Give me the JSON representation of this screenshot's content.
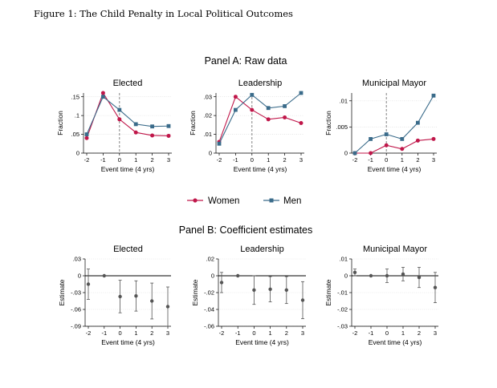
{
  "figure": {
    "caption": "Figure 1: The Child Penalty in Local Political Outcomes",
    "panel_a_title": "Panel A: Raw data",
    "panel_b_title": "Panel B: Coefficient estimates",
    "legend": [
      {
        "label": "Women",
        "color": "#c0174a",
        "marker": "circle"
      },
      {
        "label": "Men",
        "color": "#3a6b8a",
        "marker": "square"
      }
    ]
  },
  "chart_data": [
    {
      "panel": "A",
      "type": "line",
      "title": "Elected",
      "xlabel": "Event time (4 yrs)",
      "ylabel": "Fraction",
      "x": [
        -2,
        -1,
        0,
        1,
        2,
        3
      ],
      "xticks": [
        -2,
        -1,
        0,
        1,
        2,
        3
      ],
      "xlim": [
        -2,
        3
      ],
      "ylim": [
        0,
        0.16
      ],
      "yticks": [
        0,
        0.05,
        0.1,
        0.15
      ],
      "ytick_labels": [
        "0",
        ".05",
        ".1",
        ".15"
      ],
      "vline": 0,
      "grid": true,
      "series": [
        {
          "name": "Women",
          "color": "#c0174a",
          "marker": "circle",
          "values": [
            0.04,
            0.16,
            0.09,
            0.055,
            0.047,
            0.046
          ]
        },
        {
          "name": "Men",
          "color": "#3a6b8a",
          "marker": "square",
          "values": [
            0.05,
            0.15,
            0.115,
            0.077,
            0.071,
            0.072
          ]
        }
      ]
    },
    {
      "panel": "A",
      "type": "line",
      "title": "Leadership",
      "xlabel": "Event time (4 yrs)",
      "ylabel": "Fraction",
      "x": [
        -2,
        -1,
        0,
        1,
        2,
        3
      ],
      "xticks": [
        -2,
        -1,
        0,
        1,
        2,
        3
      ],
      "xlim": [
        -2,
        3
      ],
      "ylim": [
        0,
        0.032
      ],
      "yticks": [
        0,
        0.01,
        0.02,
        0.03
      ],
      "ytick_labels": [
        "0",
        ".01",
        ".02",
        ".03"
      ],
      "vline": 0,
      "grid": true,
      "series": [
        {
          "name": "Women",
          "color": "#c0174a",
          "marker": "circle",
          "values": [
            0.006,
            0.03,
            0.023,
            0.018,
            0.019,
            0.016
          ]
        },
        {
          "name": "Men",
          "color": "#3a6b8a",
          "marker": "square",
          "values": [
            0.005,
            0.023,
            0.031,
            0.024,
            0.025,
            0.032
          ]
        }
      ]
    },
    {
      "panel": "A",
      "type": "line",
      "title": "Municipal Mayor",
      "xlabel": "Event time (4 yrs)",
      "ylabel": "Fraction",
      "x": [
        -2,
        -1,
        0,
        1,
        2,
        3
      ],
      "xticks": [
        -2,
        -1,
        0,
        1,
        2,
        3
      ],
      "xlim": [
        -2,
        3
      ],
      "ylim": [
        0,
        0.0115
      ],
      "yticks": [
        0,
        0.005,
        0.01
      ],
      "ytick_labels": [
        "0",
        ".005",
        ".01"
      ],
      "vline": 0,
      "grid": true,
      "series": [
        {
          "name": "Women",
          "color": "#c0174a",
          "marker": "circle",
          "values": [
            0.0,
            0.0,
            0.0015,
            0.0008,
            0.0024,
            0.0027
          ]
        },
        {
          "name": "Men",
          "color": "#3a6b8a",
          "marker": "square",
          "values": [
            0.0,
            0.0027,
            0.0036,
            0.0027,
            0.0058,
            0.011
          ]
        }
      ]
    },
    {
      "panel": "B",
      "type": "scatter",
      "title": "Elected",
      "xlabel": "Event time (4 yrs)",
      "ylabel": "Estimate",
      "x": [
        -2,
        -1,
        0,
        1,
        2,
        3
      ],
      "xticks": [
        -2,
        -1,
        0,
        1,
        2,
        3
      ],
      "xlim": [
        -2,
        3
      ],
      "ylim": [
        -0.09,
        0.03
      ],
      "yticks": [
        0.03,
        0,
        -0.03,
        -0.06,
        -0.09
      ],
      "ytick_labels": [
        ".03",
        "0",
        "-.03",
        "-.06",
        "-.09"
      ],
      "hline": 0,
      "grid": true,
      "series": [
        {
          "name": "",
          "color": "#555555",
          "marker": "circle",
          "values": [
            -0.015,
            0,
            -0.037,
            -0.036,
            -0.045,
            -0.055
          ],
          "ci_low": [
            -0.042,
            0,
            -0.066,
            -0.063,
            -0.077,
            -0.09
          ],
          "ci_high": [
            0.012,
            0,
            -0.008,
            -0.009,
            -0.013,
            -0.02
          ]
        }
      ]
    },
    {
      "panel": "B",
      "type": "scatter",
      "title": "Leadership",
      "xlabel": "Event time (4 yrs)",
      "ylabel": "Estimate",
      "x": [
        -2,
        -1,
        0,
        1,
        2,
        3
      ],
      "xticks": [
        -2,
        -1,
        0,
        1,
        2,
        3
      ],
      "xlim": [
        -2,
        3
      ],
      "ylim": [
        -0.06,
        0.02
      ],
      "yticks": [
        0.02,
        0,
        -0.02,
        -0.04,
        -0.06
      ],
      "ytick_labels": [
        ".02",
        "0",
        "-.02",
        "-.04",
        "-.06"
      ],
      "hline": 0,
      "grid": true,
      "series": [
        {
          "name": "",
          "color": "#555555",
          "marker": "circle",
          "values": [
            -0.008,
            0,
            -0.017,
            -0.016,
            -0.017,
            -0.029
          ],
          "ci_low": [
            -0.02,
            0,
            -0.034,
            -0.031,
            -0.033,
            -0.051
          ],
          "ci_high": [
            0.004,
            0,
            0.0,
            -0.001,
            -0.001,
            -0.007
          ]
        }
      ]
    },
    {
      "panel": "B",
      "type": "scatter",
      "title": "Municipal Mayor",
      "xlabel": "Event time (4 yrs)",
      "ylabel": "Estimate",
      "x": [
        -2,
        -1,
        0,
        1,
        2,
        3
      ],
      "xticks": [
        -2,
        -1,
        0,
        1,
        2,
        3
      ],
      "xlim": [
        -2,
        3
      ],
      "ylim": [
        -0.03,
        0.01
      ],
      "yticks": [
        0.01,
        0,
        -0.01,
        -0.02,
        -0.03
      ],
      "ytick_labels": [
        ".01",
        "0",
        "-.01",
        "-.02",
        "-.03"
      ],
      "hline": 0,
      "grid": true,
      "series": [
        {
          "name": "",
          "color": "#555555",
          "marker": "circle",
          "values": [
            0.002,
            0,
            0.0,
            0.001,
            -0.001,
            -0.007
          ],
          "ci_low": [
            0.0,
            0,
            -0.004,
            -0.003,
            -0.007,
            -0.016
          ],
          "ci_high": [
            0.004,
            0,
            0.004,
            0.005,
            0.005,
            0.002
          ]
        }
      ]
    }
  ]
}
